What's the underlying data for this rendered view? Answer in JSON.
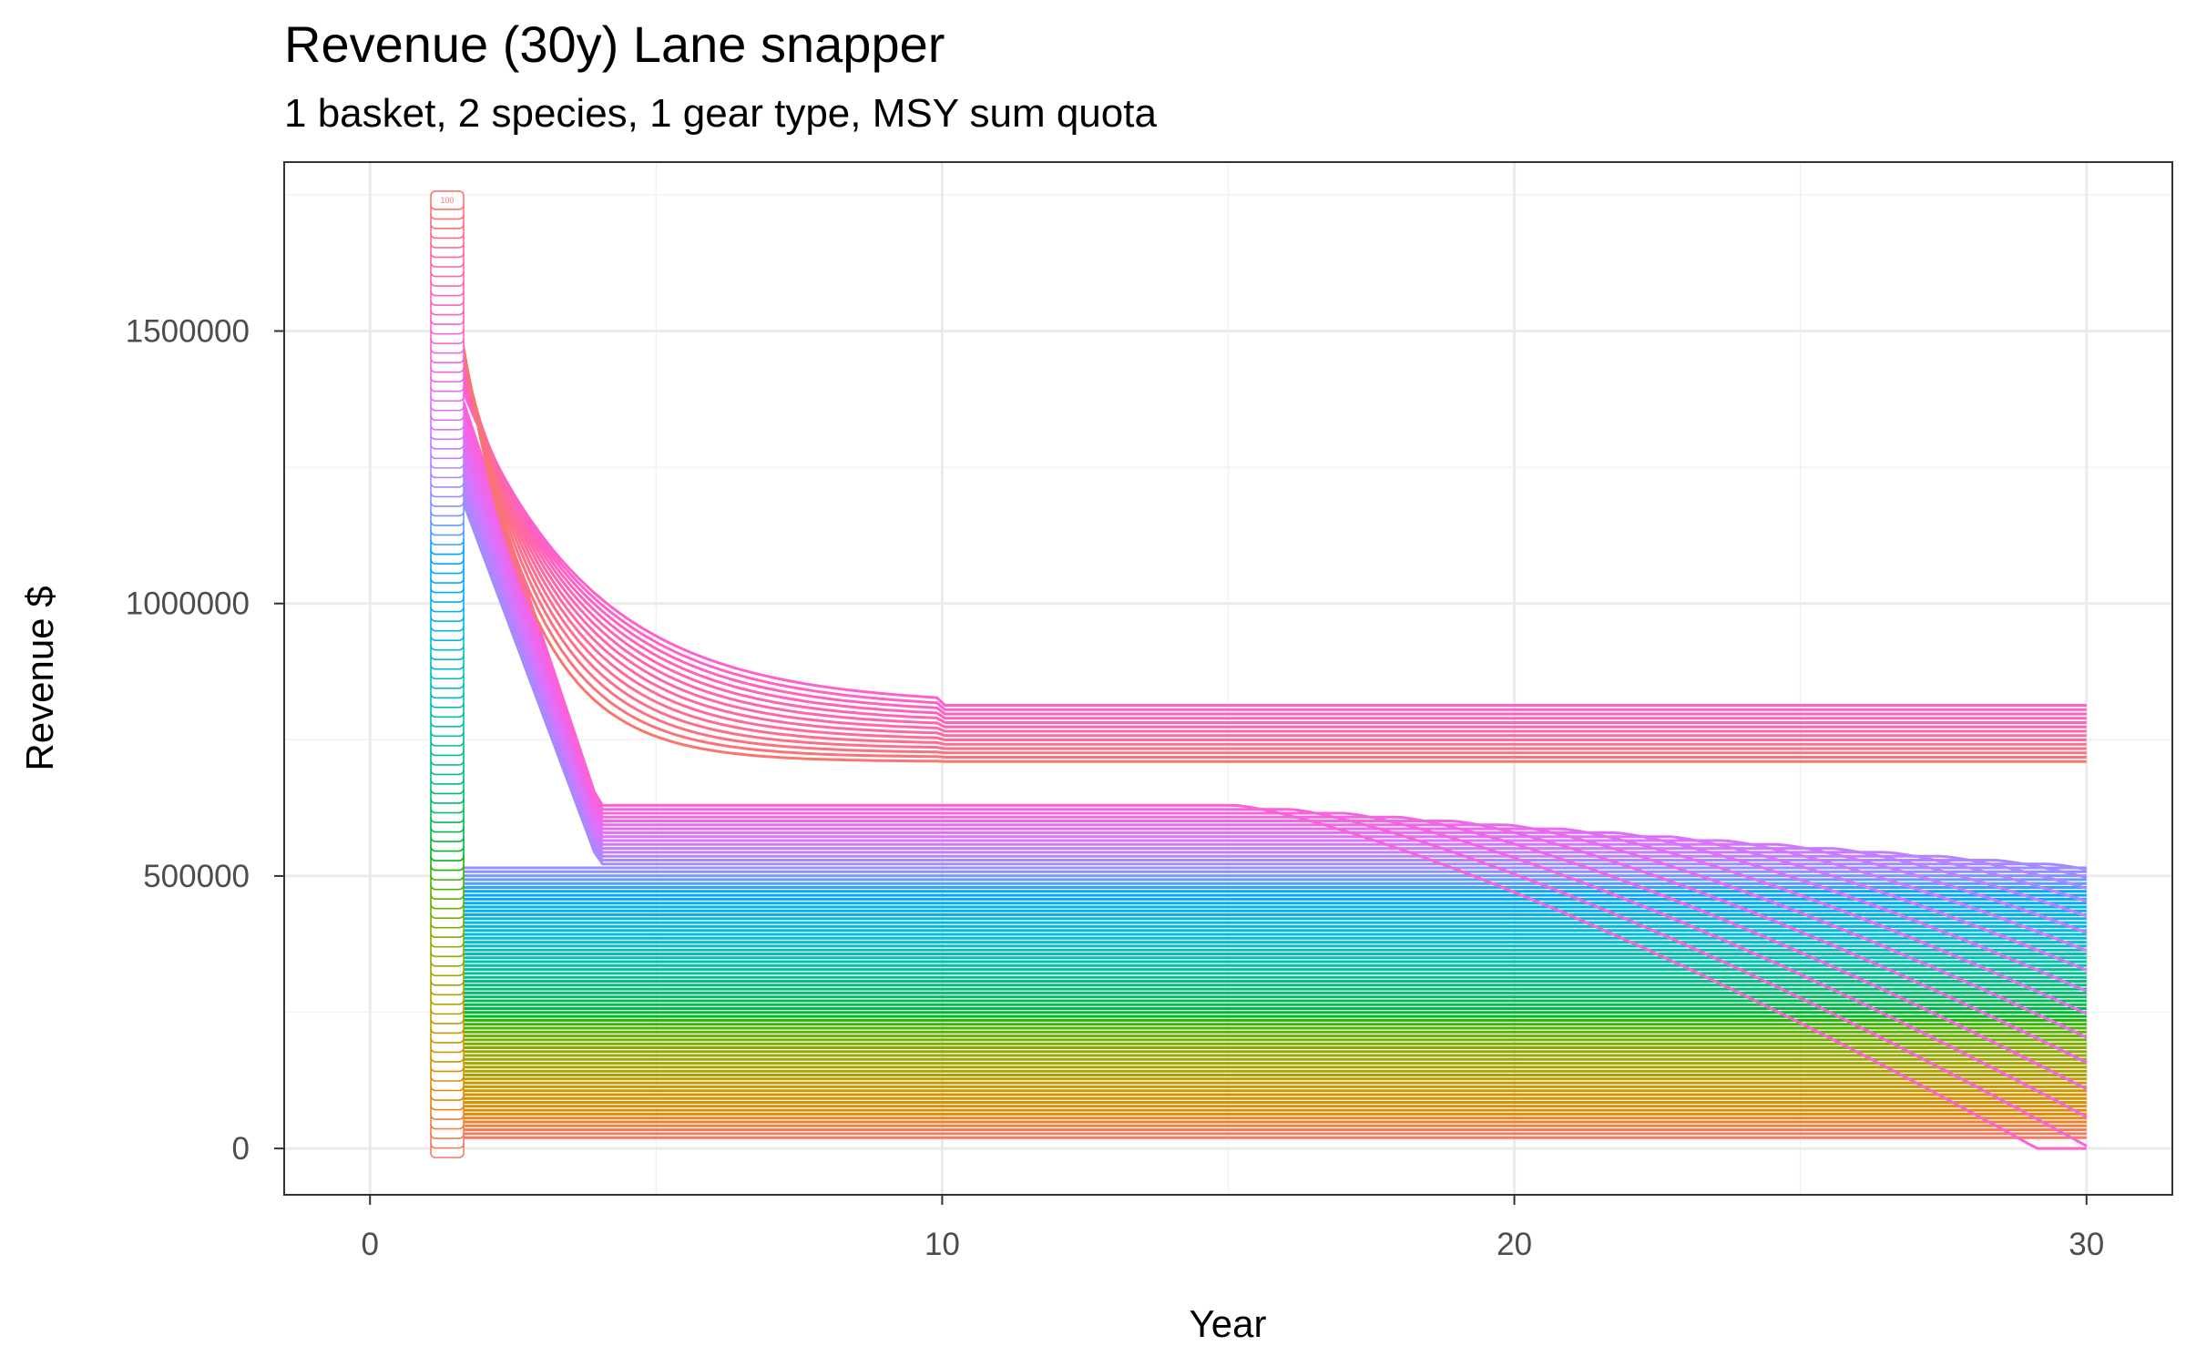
{
  "chart_data": {
    "type": "line",
    "title": "Revenue (30y) Lane snapper",
    "subtitle": "1 basket, 2 species, 1 gear type, MSY sum quota",
    "xlabel": "Year",
    "ylabel": "Revenue $",
    "xlim": [
      -1.5,
      31.5
    ],
    "ylim": [
      -85000,
      1810000
    ],
    "x_ticks": [
      0,
      10,
      20,
      30
    ],
    "x_tick_labels": [
      "0",
      "10",
      "20",
      "30"
    ],
    "y_ticks": [
      0,
      500000,
      1000000,
      1500000
    ],
    "y_tick_labels": [
      "0",
      "500000",
      "1000000",
      "1500000"
    ],
    "grid": true,
    "legend": "none",
    "run_count": 100,
    "x_start": 1.5,
    "x_end": 30,
    "label_x": 1.35,
    "label_text": "100",
    "series_note_values": {
      "plateau_min": 20000,
      "plateau_max": 730000,
      "initial_max": 1560000,
      "collapse_year_max": 7
    },
    "colors": {
      "hue_start": 15,
      "hue_end": 375
    }
  }
}
